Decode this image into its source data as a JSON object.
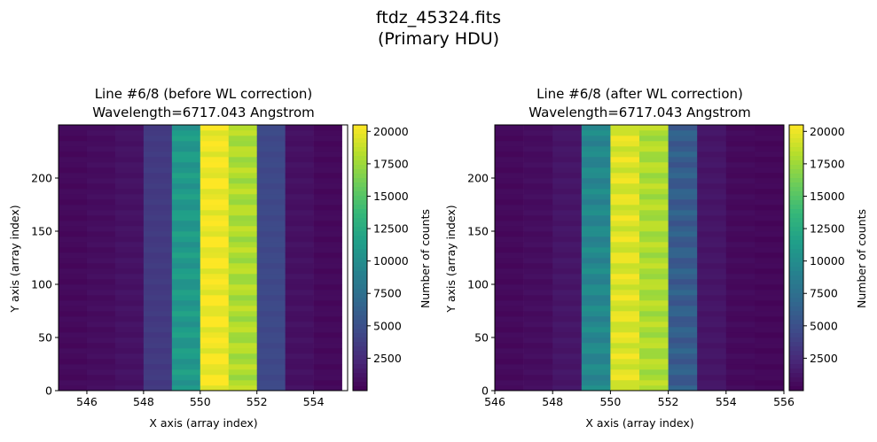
{
  "figure": {
    "suptitle_line1": "ftdz_45324.fits",
    "suptitle_line2": "(Primary HDU)"
  },
  "chart_data": [
    {
      "type": "heatmap",
      "title_line1": "Line #6/8 (before WL correction)",
      "title_line2": "Wavelength=6717.043 Angstrom",
      "xlabel": "X axis (array index)",
      "ylabel": "Y axis (array index)",
      "xlim": [
        545,
        555.2
      ],
      "ylim": [
        0,
        250
      ],
      "xticks": [
        546,
        548,
        550,
        552,
        554
      ],
      "xtick_labels": [
        "546",
        "548",
        "550",
        "552",
        "554"
      ],
      "yticks": [
        0,
        50,
        100,
        150,
        200
      ],
      "ytick_labels": [
        "0",
        "50",
        "100",
        "150",
        "200"
      ],
      "columns": [
        {
          "x": 545.5,
          "value": 500
        },
        {
          "x": 546.5,
          "value": 700
        },
        {
          "x": 547.5,
          "value": 1000
        },
        {
          "x": 548.5,
          "value": 3500
        },
        {
          "x": 549.5,
          "value": 11000
        },
        {
          "x": 550.5,
          "value": 20200
        },
        {
          "x": 551.5,
          "value": 18000
        },
        {
          "x": 552.5,
          "value": 4500
        },
        {
          "x": 553.5,
          "value": 900
        },
        {
          "x": 554.5,
          "value": 500
        }
      ],
      "colorbar": {
        "label": "Number of counts",
        "min": 0,
        "max": 20500,
        "ticks": [
          2500,
          5000,
          7500,
          10000,
          12500,
          15000,
          17500,
          20000
        ],
        "tick_labels": [
          "2500",
          "5000",
          "7500",
          "10000",
          "12500",
          "15000",
          "17500",
          "20000"
        ]
      },
      "colormap": "viridis",
      "grid": false
    },
    {
      "type": "heatmap",
      "title_line1": "Line #6/8 (after WL correction)",
      "title_line2": "Wavelength=6717.043 Angstrom",
      "xlabel": "X axis (array index)",
      "ylabel": "Y axis (array index)",
      "xlim": [
        546,
        556
      ],
      "ylim": [
        0,
        250
      ],
      "xticks": [
        546,
        548,
        550,
        552,
        554,
        556
      ],
      "xtick_labels": [
        "546",
        "548",
        "550",
        "552",
        "554",
        "556"
      ],
      "yticks": [
        0,
        50,
        100,
        150,
        200
      ],
      "ytick_labels": [
        "0",
        "50",
        "100",
        "150",
        "200"
      ],
      "columns": [
        {
          "x": 546.5,
          "value": 500
        },
        {
          "x": 547.5,
          "value": 700
        },
        {
          "x": 548.5,
          "value": 1200
        },
        {
          "x": 549.5,
          "value": 9500
        },
        {
          "x": 550.5,
          "value": 19500
        },
        {
          "x": 551.5,
          "value": 18000
        },
        {
          "x": 552.5,
          "value": 6000
        },
        {
          "x": 553.5,
          "value": 1200
        },
        {
          "x": 554.5,
          "value": 500
        },
        {
          "x": 555.5,
          "value": 400
        }
      ],
      "colorbar": {
        "label": "Number of counts",
        "min": 0,
        "max": 20500,
        "ticks": [
          2500,
          5000,
          7500,
          10000,
          12500,
          15000,
          17500,
          20000
        ],
        "tick_labels": [
          "2500",
          "5000",
          "7500",
          "10000",
          "12500",
          "15000",
          "17500",
          "20000"
        ]
      },
      "colormap": "viridis",
      "grid": false
    }
  ]
}
